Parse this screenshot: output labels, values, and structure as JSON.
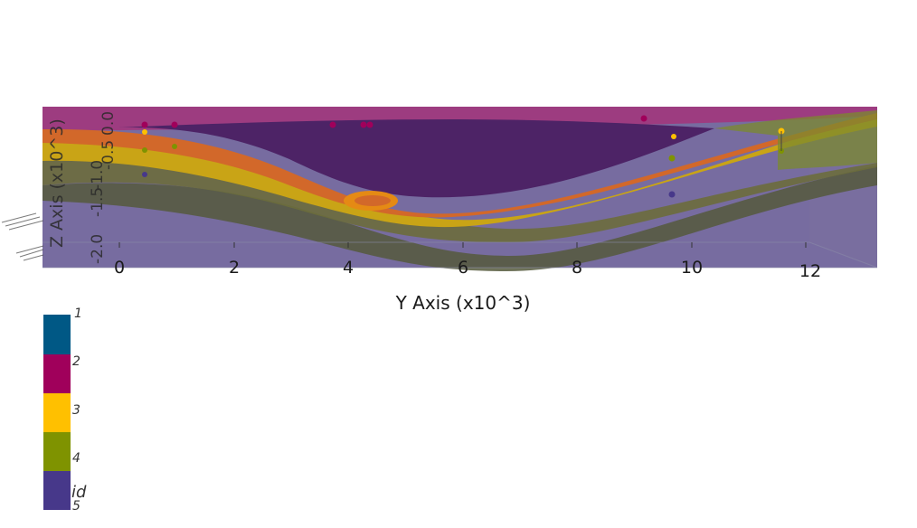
{
  "axes": {
    "y_axis_title": "Y Axis (x10^3)",
    "y_tick_labels": [
      "0",
      "2",
      "4",
      "6",
      "8",
      "10",
      "12"
    ],
    "z_axis_title": "Z Axis (x10^3)",
    "z_tick_labels": [
      "-2.0",
      "-1.5",
      "-1.0",
      "-0.5",
      "0.0"
    ]
  },
  "legend": {
    "title": "id",
    "entries": [
      {
        "label": "1",
        "color": "#005885"
      },
      {
        "label": "2",
        "color": "#a0005b"
      },
      {
        "label": "3",
        "color": "#ffc000"
      },
      {
        "label": "4",
        "color": "#7f9300"
      },
      {
        "label": "5",
        "color": "#47388a"
      }
    ]
  },
  "surface_colors": {
    "top_band": "#9d3c80",
    "purple_core": "#4d2366",
    "orange_layer": "#d2682a",
    "yellow_layer": "#c9a416",
    "olive_layer": "#6c6d3c",
    "base_block": "#6b6098"
  }
}
